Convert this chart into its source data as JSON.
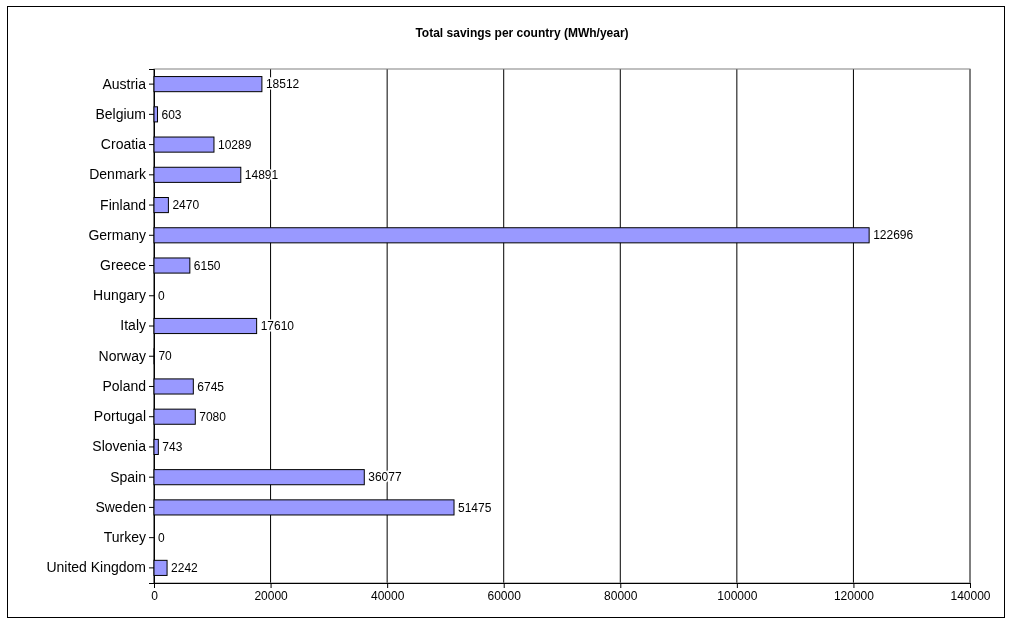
{
  "chart_data": {
    "type": "bar",
    "orientation": "horizontal",
    "title": "Total savings per country (MWh/year)",
    "categories": [
      "Austria",
      "Belgium",
      "Croatia",
      "Denmark",
      "Finland",
      "Germany",
      "Greece",
      "Hungary",
      "Italy",
      "Norway",
      "Poland",
      "Portugal",
      "Slovenia",
      "Spain",
      "Sweden",
      "Turkey",
      "United Kingdom"
    ],
    "values": [
      18512,
      603,
      10289,
      14891,
      2470,
      122696,
      6150,
      0,
      17610,
      70,
      6745,
      7080,
      743,
      36077,
      51475,
      0,
      2242
    ],
    "color": "#9999ff",
    "xlim": [
      0,
      140000
    ],
    "xticks": [
      0,
      20000,
      40000,
      60000,
      80000,
      100000,
      120000,
      140000
    ],
    "grid": "x",
    "data_labels": true
  }
}
